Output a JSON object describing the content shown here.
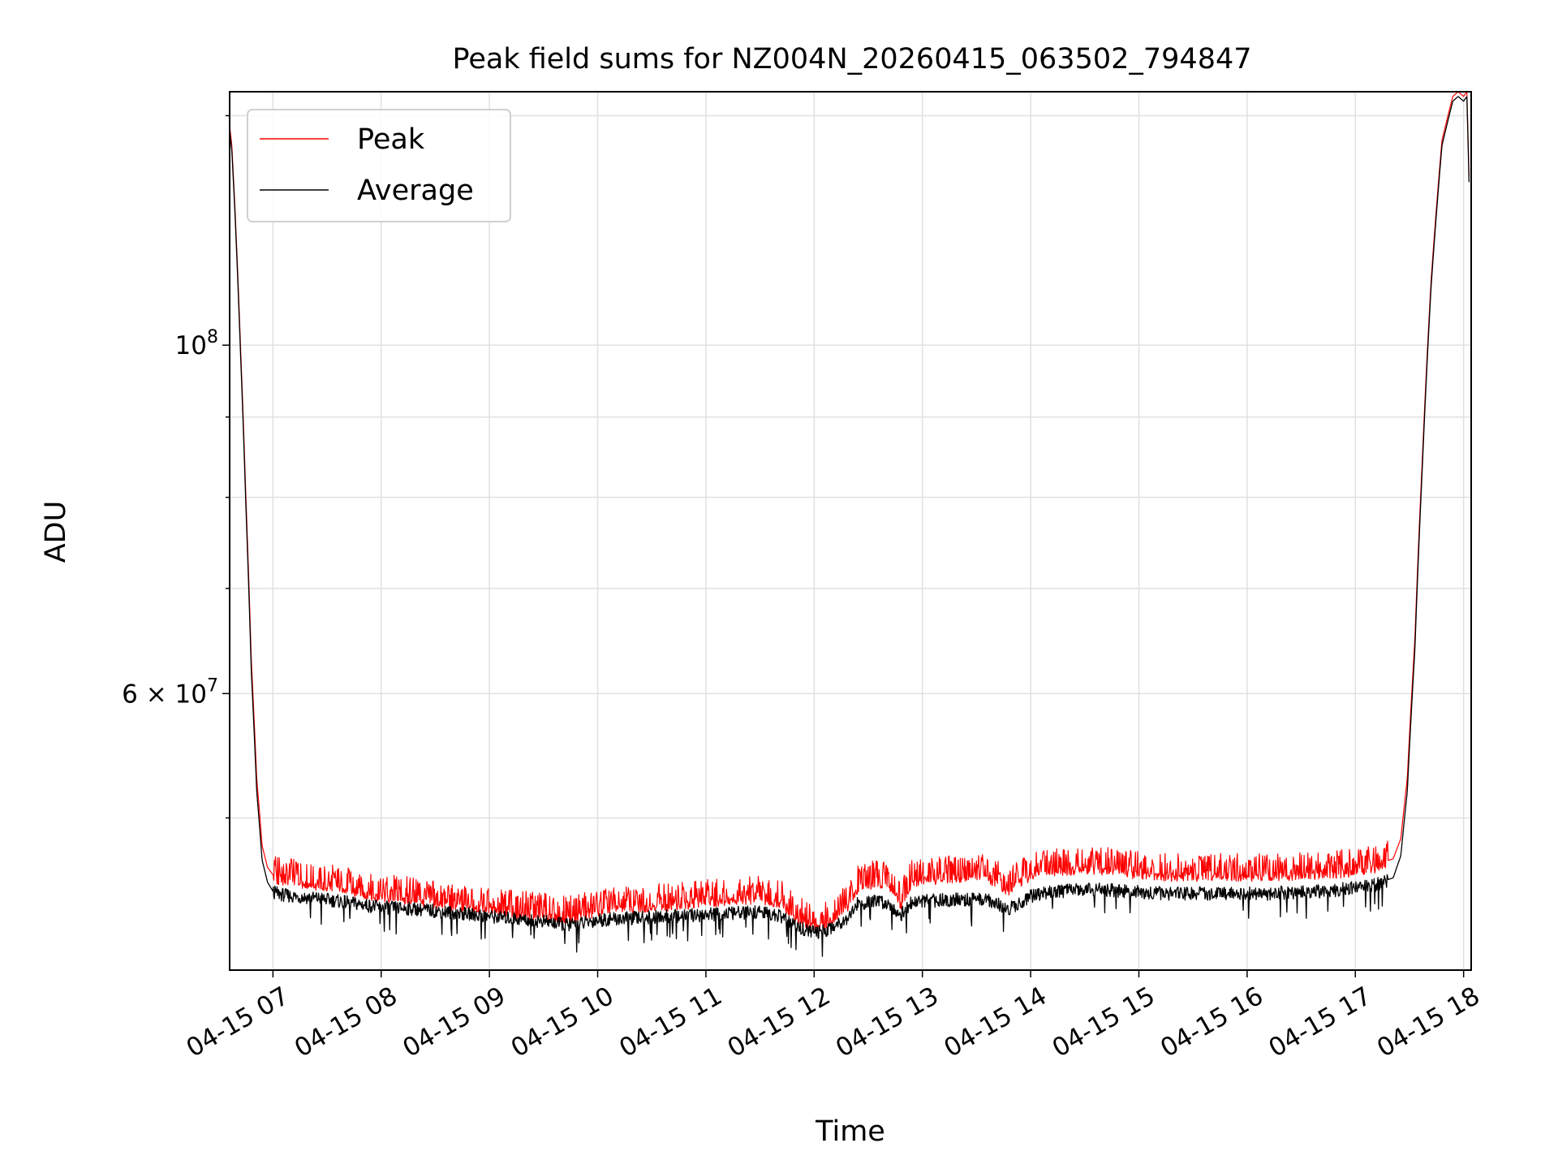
{
  "chart_data": {
    "type": "line",
    "title": "Peak field sums for NZ004N_20260415_063502_794847",
    "xlabel": "Time",
    "ylabel": "ADU",
    "y_scale": "log",
    "x_unit": "hours (2026-04-15)",
    "xlim": [
      6.6,
      18.07
    ],
    "ylim": [
      40000000,
      145000000
    ],
    "grid": true,
    "legend_position": "top-left",
    "x_ticks": [
      {
        "value": 7,
        "label": "04-15 07"
      },
      {
        "value": 8,
        "label": "04-15 08"
      },
      {
        "value": 9,
        "label": "04-15 09"
      },
      {
        "value": 10,
        "label": "04-15 10"
      },
      {
        "value": 11,
        "label": "04-15 11"
      },
      {
        "value": 12,
        "label": "04-15 12"
      },
      {
        "value": 13,
        "label": "04-15 13"
      },
      {
        "value": 14,
        "label": "04-15 14"
      },
      {
        "value": 15,
        "label": "04-15 15"
      },
      {
        "value": 16,
        "label": "04-15 16"
      },
      {
        "value": 17,
        "label": "04-15 17"
      },
      {
        "value": 18,
        "label": "04-15 18"
      }
    ],
    "y_major_ticks": [
      {
        "value": 100000000,
        "base": "10",
        "exp": "8"
      },
      {
        "value": 60000000,
        "base": "6 × 10",
        "exp": "7"
      }
    ],
    "y_minor_ticks": [
      50000000,
      70000000,
      80000000,
      90000000,
      140000000
    ],
    "series": [
      {
        "name": "Peak",
        "color": "#ff0000",
        "x": [
          6.6,
          6.62,
          6.65,
          6.7,
          6.75,
          6.8,
          6.85,
          6.9,
          6.95,
          7.0,
          7.1,
          7.2,
          7.4,
          7.6,
          7.8,
          8.0,
          8.3,
          8.6,
          8.9,
          9.2,
          9.5,
          9.7,
          9.8,
          10.0,
          10.3,
          10.6,
          10.9,
          11.2,
          11.5,
          11.7,
          11.8,
          11.95,
          12.05,
          12.15,
          12.3,
          12.4,
          12.6,
          12.7,
          12.8,
          12.9,
          13.0,
          13.3,
          13.6,
          13.8,
          13.9,
          14.0,
          14.2,
          14.5,
          14.8,
          15.0,
          15.3,
          15.6,
          15.9,
          16.2,
          16.5,
          16.8,
          17.0,
          17.2,
          17.35,
          17.42,
          17.48,
          17.55,
          17.62,
          17.7,
          17.8,
          17.9,
          17.95,
          18.0,
          18.03,
          18.05
        ],
        "y": [
          138000000,
          134000000,
          122000000,
          100000000,
          80000000,
          63000000,
          53000000,
          48000000,
          46500000,
          46000000,
          45800000,
          45700000,
          45500000,
          45300000,
          45000000,
          44700000,
          44500000,
          44200000,
          44000000,
          43700000,
          43500000,
          43300000,
          43400000,
          43800000,
          44000000,
          44100000,
          44300000,
          44500000,
          44600000,
          44300000,
          43500000,
          42900000,
          42800000,
          43100000,
          44000000,
          45300000,
          45700000,
          45400000,
          44200000,
          45600000,
          45800000,
          46000000,
          46000000,
          45100000,
          45700000,
          46100000,
          46400000,
          46600000,
          46500000,
          46200000,
          46100000,
          46100000,
          46100000,
          46100000,
          46200000,
          46300000,
          46400000,
          46700000,
          47100000,
          48500000,
          53000000,
          65000000,
          85000000,
          110000000,
          135000000,
          144000000,
          145000000,
          144000000,
          145000000,
          128000000
        ]
      },
      {
        "name": "Average",
        "color": "#000000",
        "x": [
          6.6,
          6.62,
          6.65,
          6.7,
          6.75,
          6.8,
          6.85,
          6.9,
          6.95,
          7.0,
          7.1,
          7.2,
          7.4,
          7.6,
          7.8,
          8.0,
          8.3,
          8.6,
          8.9,
          9.2,
          9.5,
          9.7,
          9.8,
          10.0,
          10.3,
          10.6,
          10.9,
          11.2,
          11.5,
          11.7,
          11.8,
          11.95,
          12.05,
          12.15,
          12.3,
          12.4,
          12.6,
          12.7,
          12.8,
          12.9,
          13.0,
          13.3,
          13.6,
          13.8,
          13.9,
          14.0,
          14.2,
          14.5,
          14.8,
          15.0,
          15.3,
          15.6,
          15.9,
          16.2,
          16.5,
          16.8,
          17.0,
          17.2,
          17.35,
          17.42,
          17.48,
          17.55,
          17.62,
          17.7,
          17.8,
          17.9,
          17.95,
          18.0,
          18.03,
          18.05
        ],
        "y": [
          137000000,
          133000000,
          121000000,
          99000000,
          79000000,
          62000000,
          52000000,
          47000000,
          45500000,
          44900000,
          44700000,
          44600000,
          44500000,
          44300000,
          44100000,
          43900000,
          43800000,
          43600000,
          43400000,
          43200000,
          43000000,
          42800000,
          42800000,
          43100000,
          43200000,
          43300000,
          43400000,
          43500000,
          43600000,
          43300000,
          42800000,
          42400000,
          42300000,
          42600000,
          43200000,
          44100000,
          44300000,
          44100000,
          43400000,
          44200000,
          44300000,
          44400000,
          44400000,
          43800000,
          44200000,
          44600000,
          44900000,
          45100000,
          45000000,
          44900000,
          44800000,
          44800000,
          44800000,
          44800000,
          44900000,
          45000000,
          45200000,
          45400000,
          45800000,
          47300000,
          52000000,
          64000000,
          84000000,
          109000000,
          134000000,
          143000000,
          144000000,
          143000000,
          144000000,
          127000000
        ]
      }
    ]
  }
}
